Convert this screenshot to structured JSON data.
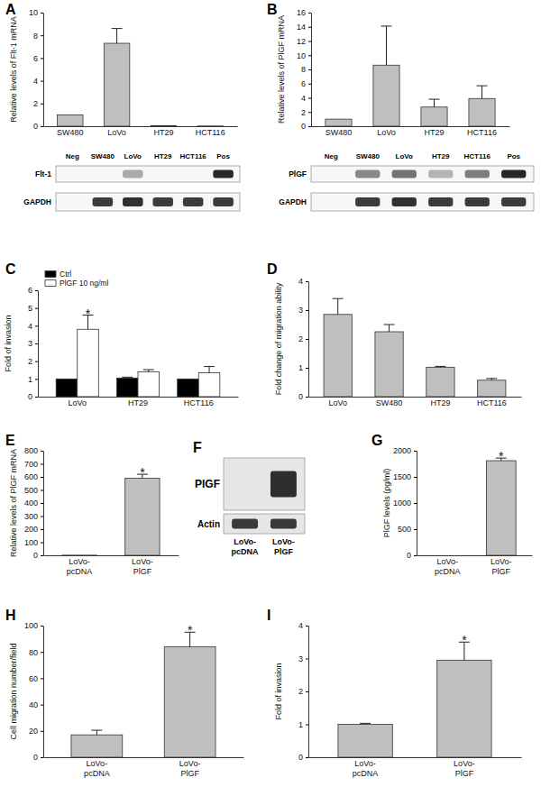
{
  "chart_data": [
    {
      "type": "bar",
      "title": "A",
      "y_label": "Relative levels of Flt-1 mRNA",
      "categories": [
        "SW480",
        "LoVo",
        "HT29",
        "HCT116"
      ],
      "values": [
        1,
        7.3,
        0.05,
        0.02
      ],
      "errors": [
        0,
        1.3,
        0,
        0
      ],
      "color": "#bfbfbf",
      "ylim": [
        0,
        10
      ],
      "yticks": [
        0,
        2,
        4,
        6,
        8,
        10
      ]
    },
    {
      "type": "bar",
      "title": "B",
      "y_label": "Relative levels of PlGF mRNA",
      "categories": [
        "SW480",
        "LoVo",
        "HT29",
        "HCT116"
      ],
      "values": [
        1,
        8.6,
        2.7,
        3.9
      ],
      "errors": [
        0,
        5.5,
        1.1,
        1.8
      ],
      "color": "#bfbfbf",
      "ylim": [
        0,
        16
      ],
      "yticks": [
        0,
        2,
        4,
        6,
        8,
        10,
        12,
        14,
        16
      ]
    },
    {
      "type": "bar",
      "title": "C",
      "y_label": "Fold of invasion",
      "categories": [
        "LoVo",
        "HT29",
        "HCT116"
      ],
      "series": [
        {
          "name": "Ctrl",
          "color": "#000000",
          "values": [
            1,
            1.05,
            1
          ],
          "errors": [
            0,
            0.05,
            0
          ]
        },
        {
          "name": "PlGF 10 ng/ml",
          "color": "#ffffff",
          "values": [
            3.8,
            1.4,
            1.35
          ],
          "errors": [
            0.8,
            0.12,
            0.35
          ]
        }
      ],
      "ylim": [
        0,
        6
      ],
      "yticks": [
        0,
        1,
        2,
        3,
        4,
        5,
        6
      ],
      "legend": "upper left",
      "annotations": [
        {
          "text": "*",
          "category": "LoVo",
          "series": "PlGF 10 ng/ml"
        }
      ]
    },
    {
      "type": "bar",
      "title": "D",
      "y_label": "Fold change of migration ability",
      "categories": [
        "LoVo",
        "SW480",
        "HT29",
        "HCT116"
      ],
      "values": [
        2.85,
        2.25,
        1.02,
        0.57
      ],
      "errors": [
        0.55,
        0.25,
        0.03,
        0.06
      ],
      "color": "#bfbfbf",
      "ylim": [
        0,
        4
      ],
      "yticks": [
        0,
        1,
        2,
        3,
        4
      ]
    },
    {
      "type": "bar",
      "title": "E",
      "y_label": "Relative levels of PlGF mRNA",
      "categories": [
        "LoVo-pcDNA",
        "LoVo-PlGF"
      ],
      "values": [
        1,
        590
      ],
      "errors": [
        0,
        30
      ],
      "color": "#bfbfbf",
      "ylim": [
        0,
        800
      ],
      "yticks": [
        0,
        100,
        200,
        300,
        400,
        500,
        600,
        700,
        800
      ],
      "annotations": [
        {
          "text": "*",
          "category": "LoVo-PlGF"
        }
      ]
    },
    {
      "type": "bar",
      "title": "G",
      "y_label": "PlGF levels (pg/ml)",
      "categories": [
        "LoVo-pcDNA",
        "LoVo-PlGF"
      ],
      "values": [
        0,
        1810
      ],
      "errors": [
        0,
        50
      ],
      "color": "#bfbfbf",
      "ylim": [
        0,
        2000
      ],
      "yticks": [
        0,
        500,
        1000,
        1500,
        2000
      ],
      "annotations": [
        {
          "text": "*",
          "category": "LoVo-PlGF"
        }
      ]
    },
    {
      "type": "bar",
      "title": "H",
      "y_label": "Cell migration number/field",
      "categories": [
        "LoVo-pcDNA",
        "LoVo-PlGF"
      ],
      "values": [
        17,
        84
      ],
      "errors": [
        3.5,
        11
      ],
      "color": "#bfbfbf",
      "ylim": [
        0,
        100
      ],
      "yticks": [
        0,
        20,
        40,
        60,
        80,
        100
      ],
      "annotations": [
        {
          "text": "*",
          "category": "LoVo-PlGF"
        }
      ]
    },
    {
      "type": "bar",
      "title": "I",
      "y_label": "Fold of invasion",
      "categories": [
        "LoVo-pcDNA",
        "LoVo-PlGF"
      ],
      "values": [
        1,
        2.95
      ],
      "errors": [
        0.03,
        0.55
      ],
      "color": "#bfbfbf",
      "ylim": [
        0,
        4
      ],
      "yticks": [
        0,
        1,
        2,
        3,
        4
      ],
      "annotations": [
        {
          "text": "*",
          "category": "LoVo-PlGF"
        }
      ]
    }
  ],
  "blots": [
    {
      "lanes": [
        "Neg",
        "SW480",
        "LoVo",
        "HT29",
        "HCT116",
        "Pos"
      ],
      "rows": [
        {
          "name": "Flt-1",
          "bands": [
            0,
            0,
            0.35,
            0,
            0,
            0.95
          ]
        },
        {
          "name": "GAPDH",
          "bands": [
            0,
            0.85,
            0.9,
            0.85,
            0.85,
            0.85
          ]
        }
      ]
    },
    {
      "lanes": [
        "Neg",
        "SW480",
        "LoVo",
        "HT29",
        "HCT116",
        "Pos"
      ],
      "rows": [
        {
          "name": "PlGF",
          "bands": [
            0,
            0.5,
            0.6,
            0.3,
            0.55,
            0.95
          ]
        },
        {
          "name": "GAPDH",
          "bands": [
            0,
            0.85,
            0.9,
            0.85,
            0.85,
            0.85
          ]
        }
      ]
    },
    {
      "title": "F",
      "lanes": [
        "LoVo-pcDNA",
        "LoVo-PlGF"
      ],
      "rows": [
        {
          "name": "PlGF",
          "bands": [
            0,
            0.9
          ]
        },
        {
          "name": "Actin",
          "bands": [
            0.85,
            0.85
          ]
        }
      ]
    }
  ]
}
